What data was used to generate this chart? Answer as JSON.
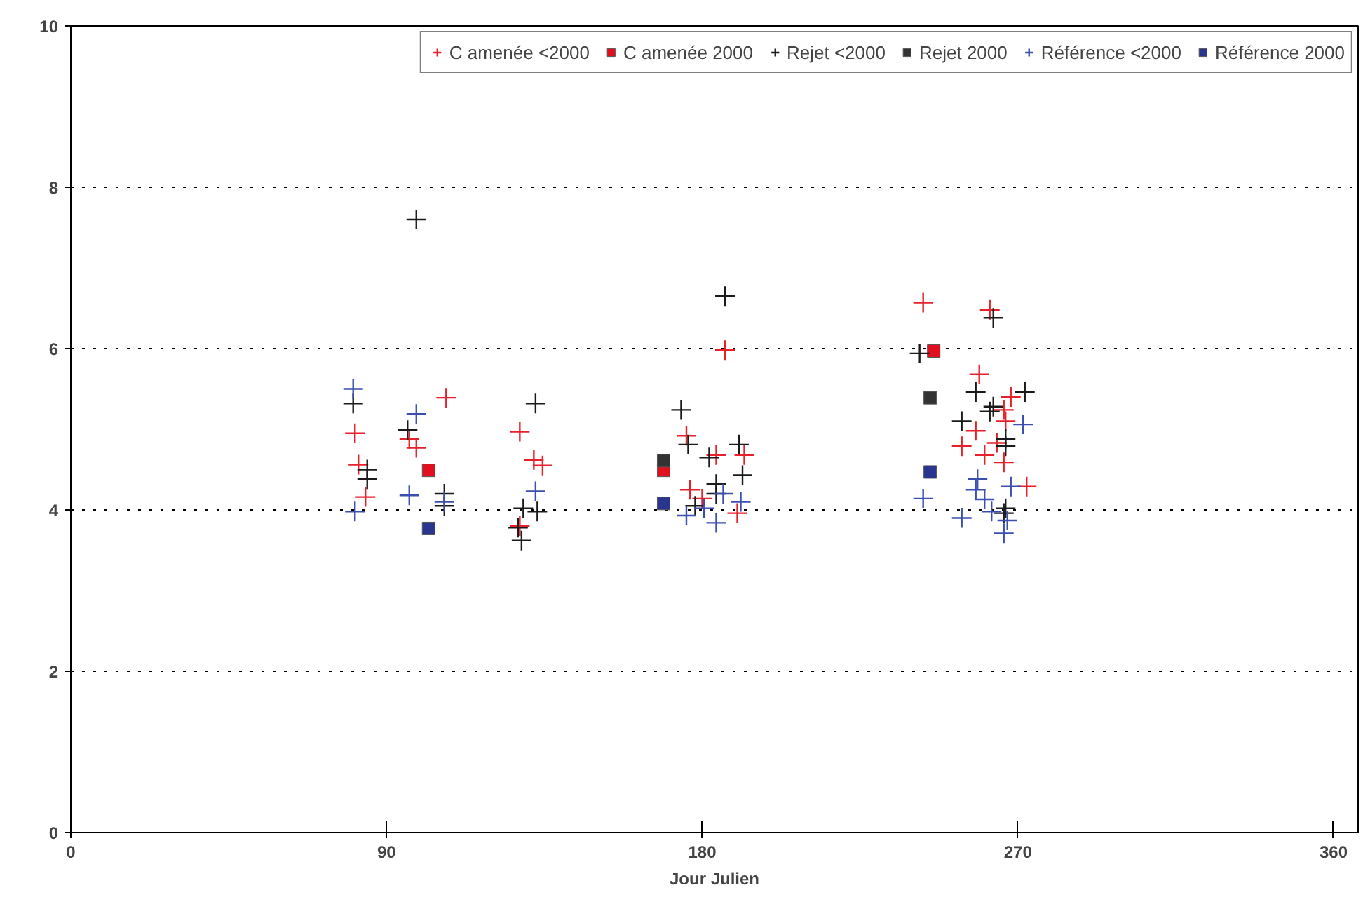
{
  "chart_data": {
    "type": "scatter",
    "xlabel": "Jour Julien",
    "xlim": [
      0,
      367
    ],
    "ylim": [
      0,
      10
    ],
    "xticks": [
      0,
      90,
      180,
      270,
      360
    ],
    "yticks": [
      0,
      2,
      4,
      6,
      8,
      10
    ],
    "grid": "y",
    "legend": "top right",
    "series": [
      {
        "name": "C amenée <2000",
        "color": "#e8202a",
        "marker": "cross",
        "x": [
          81,
          82,
          84,
          107,
          96.5,
          98.5,
          128,
          132,
          134.5,
          128,
          186.5,
          175.5,
          184,
          192,
          176.5,
          180,
          190,
          243,
          262,
          259,
          268,
          266,
          258,
          266.5,
          254,
          260.5,
          264,
          266,
          272.5
        ],
        "values": [
          4.95,
          4.56,
          4.16,
          5.39,
          4.88,
          4.77,
          4.97,
          4.62,
          4.55,
          3.8,
          5.98,
          4.92,
          4.68,
          4.68,
          4.25,
          4.14,
          3.96,
          6.57,
          6.48,
          5.68,
          5.4,
          5.24,
          4.98,
          5.1,
          4.79,
          4.68,
          4.83,
          4.59,
          4.29
        ]
      },
      {
        "name": "C amenée 2000",
        "color": "#e0101e",
        "marker": "square",
        "x": [
          102,
          169,
          246
        ],
        "values": [
          4.49,
          4.49,
          5.97
        ]
      },
      {
        "name": "Rejet <2000",
        "color": "#1a1a1a",
        "marker": "cross",
        "x": [
          98.5,
          80.5,
          84.5,
          84.5,
          96,
          106.5,
          106.5,
          132.5,
          129,
          133,
          128.5,
          127.5,
          186.5,
          174,
          176,
          190.5,
          182,
          191.5,
          184,
          184,
          178,
          263,
          242,
          258,
          272,
          262,
          263,
          254,
          266.5,
          266.5,
          266,
          266.5
        ],
        "values": [
          7.6,
          5.32,
          4.5,
          4.38,
          4.99,
          4.2,
          4.05,
          5.32,
          4.02,
          3.98,
          3.62,
          3.78,
          6.65,
          5.24,
          4.81,
          4.81,
          4.65,
          4.43,
          4.32,
          4.2,
          4.05,
          6.38,
          5.94,
          5.46,
          5.46,
          5.22,
          5.28,
          5.1,
          4.88,
          4.79,
          3.96,
          4.02
        ]
      },
      {
        "name": "Rejet 2000",
        "color": "#333333",
        "marker": "square",
        "x": [
          169,
          245
        ],
        "values": [
          4.61,
          5.39
        ]
      },
      {
        "name": "Référence <2000",
        "color": "#3a4fb0",
        "marker": "cross",
        "x": [
          80.5,
          81,
          98.5,
          96.5,
          106.5,
          132.5,
          191,
          175.5,
          184,
          180.5,
          186,
          243,
          271.5,
          258.5,
          258,
          268,
          260.5,
          254,
          262.5,
          266,
          267
        ],
        "values": [
          5.5,
          3.98,
          5.19,
          4.18,
          4.1,
          4.23,
          4.1,
          3.93,
          3.84,
          4.02,
          4.2,
          4.14,
          5.06,
          4.38,
          4.25,
          4.29,
          4.13,
          3.9,
          3.98,
          3.71,
          3.87
        ]
      },
      {
        "name": "Référence 2000",
        "color": "#2a3590",
        "marker": "square",
        "x": [
          102,
          169,
          245
        ],
        "values": [
          3.77,
          4.08,
          4.47
        ]
      }
    ]
  }
}
